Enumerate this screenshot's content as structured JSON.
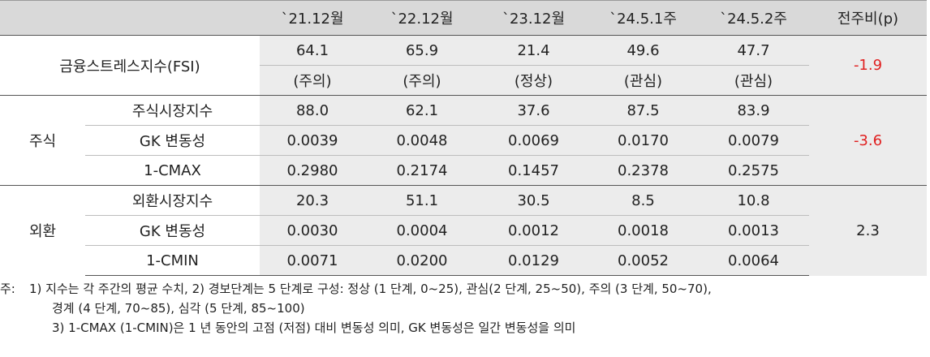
{
  "table": {
    "headers": [
      "",
      "`21.12월",
      "`22.12월",
      "`23.12월",
      "`24.5.1주",
      "`24.5.2주",
      "전주비(p)"
    ],
    "fsi": {
      "label": "금융스트레스지수(FSI)",
      "values": [
        "64.1",
        "65.9",
        "21.4",
        "49.6",
        "47.7"
      ],
      "status": [
        "(주의)",
        "(주의)",
        "(정상)",
        "(관심)",
        "(관심)"
      ],
      "change": "-1.9"
    },
    "stock": {
      "label": "주식",
      "rows": [
        {
          "label": "주식시장지수",
          "values": [
            "88.0",
            "62.1",
            "37.6",
            "87.5",
            "83.9"
          ]
        },
        {
          "label": "GK 변동성",
          "values": [
            "0.0039",
            "0.0048",
            "0.0069",
            "0.0170",
            "0.0079"
          ]
        },
        {
          "label": "1-CMAX",
          "values": [
            "0.2980",
            "0.2174",
            "0.1457",
            "0.2378",
            "0.2575"
          ]
        }
      ],
      "change": "-3.6"
    },
    "fx": {
      "label": "외환",
      "rows": [
        {
          "label": "외환시장지수",
          "values": [
            "20.3",
            "51.1",
            "30.5",
            "8.5",
            "10.8"
          ]
        },
        {
          "label": "GK 변동성",
          "values": [
            "0.0030",
            "0.0004",
            "0.0012",
            "0.0018",
            "0.0013"
          ]
        },
        {
          "label": "1-CMIN",
          "values": [
            "0.0071",
            "0.0200",
            "0.0129",
            "0.0052",
            "0.0064"
          ]
        }
      ],
      "change": "2.3"
    }
  },
  "notes": {
    "prefix": "주:",
    "line1": "1) 지수는 각 주간의 평균 수치, 2) 경보단계는 5 단계로 구성: 정상 (1 단계, 0~25), 관심(2 단계, 25~50), 주의 (3 단계, 50~70),",
    "line2": "경계 (4 단계, 70~85), 심각 (5 단계, 85~100)",
    "line3": "3) 1-CMAX (1-CMIN)은 1 년 동안의 고점 (저점) 대비 변동성 의미, GK 변동성은 일간 변동성을 의미"
  },
  "colors": {
    "header_bg": "#d9d9d9",
    "shade_bg": "#ececec",
    "negative": "#e02020"
  }
}
